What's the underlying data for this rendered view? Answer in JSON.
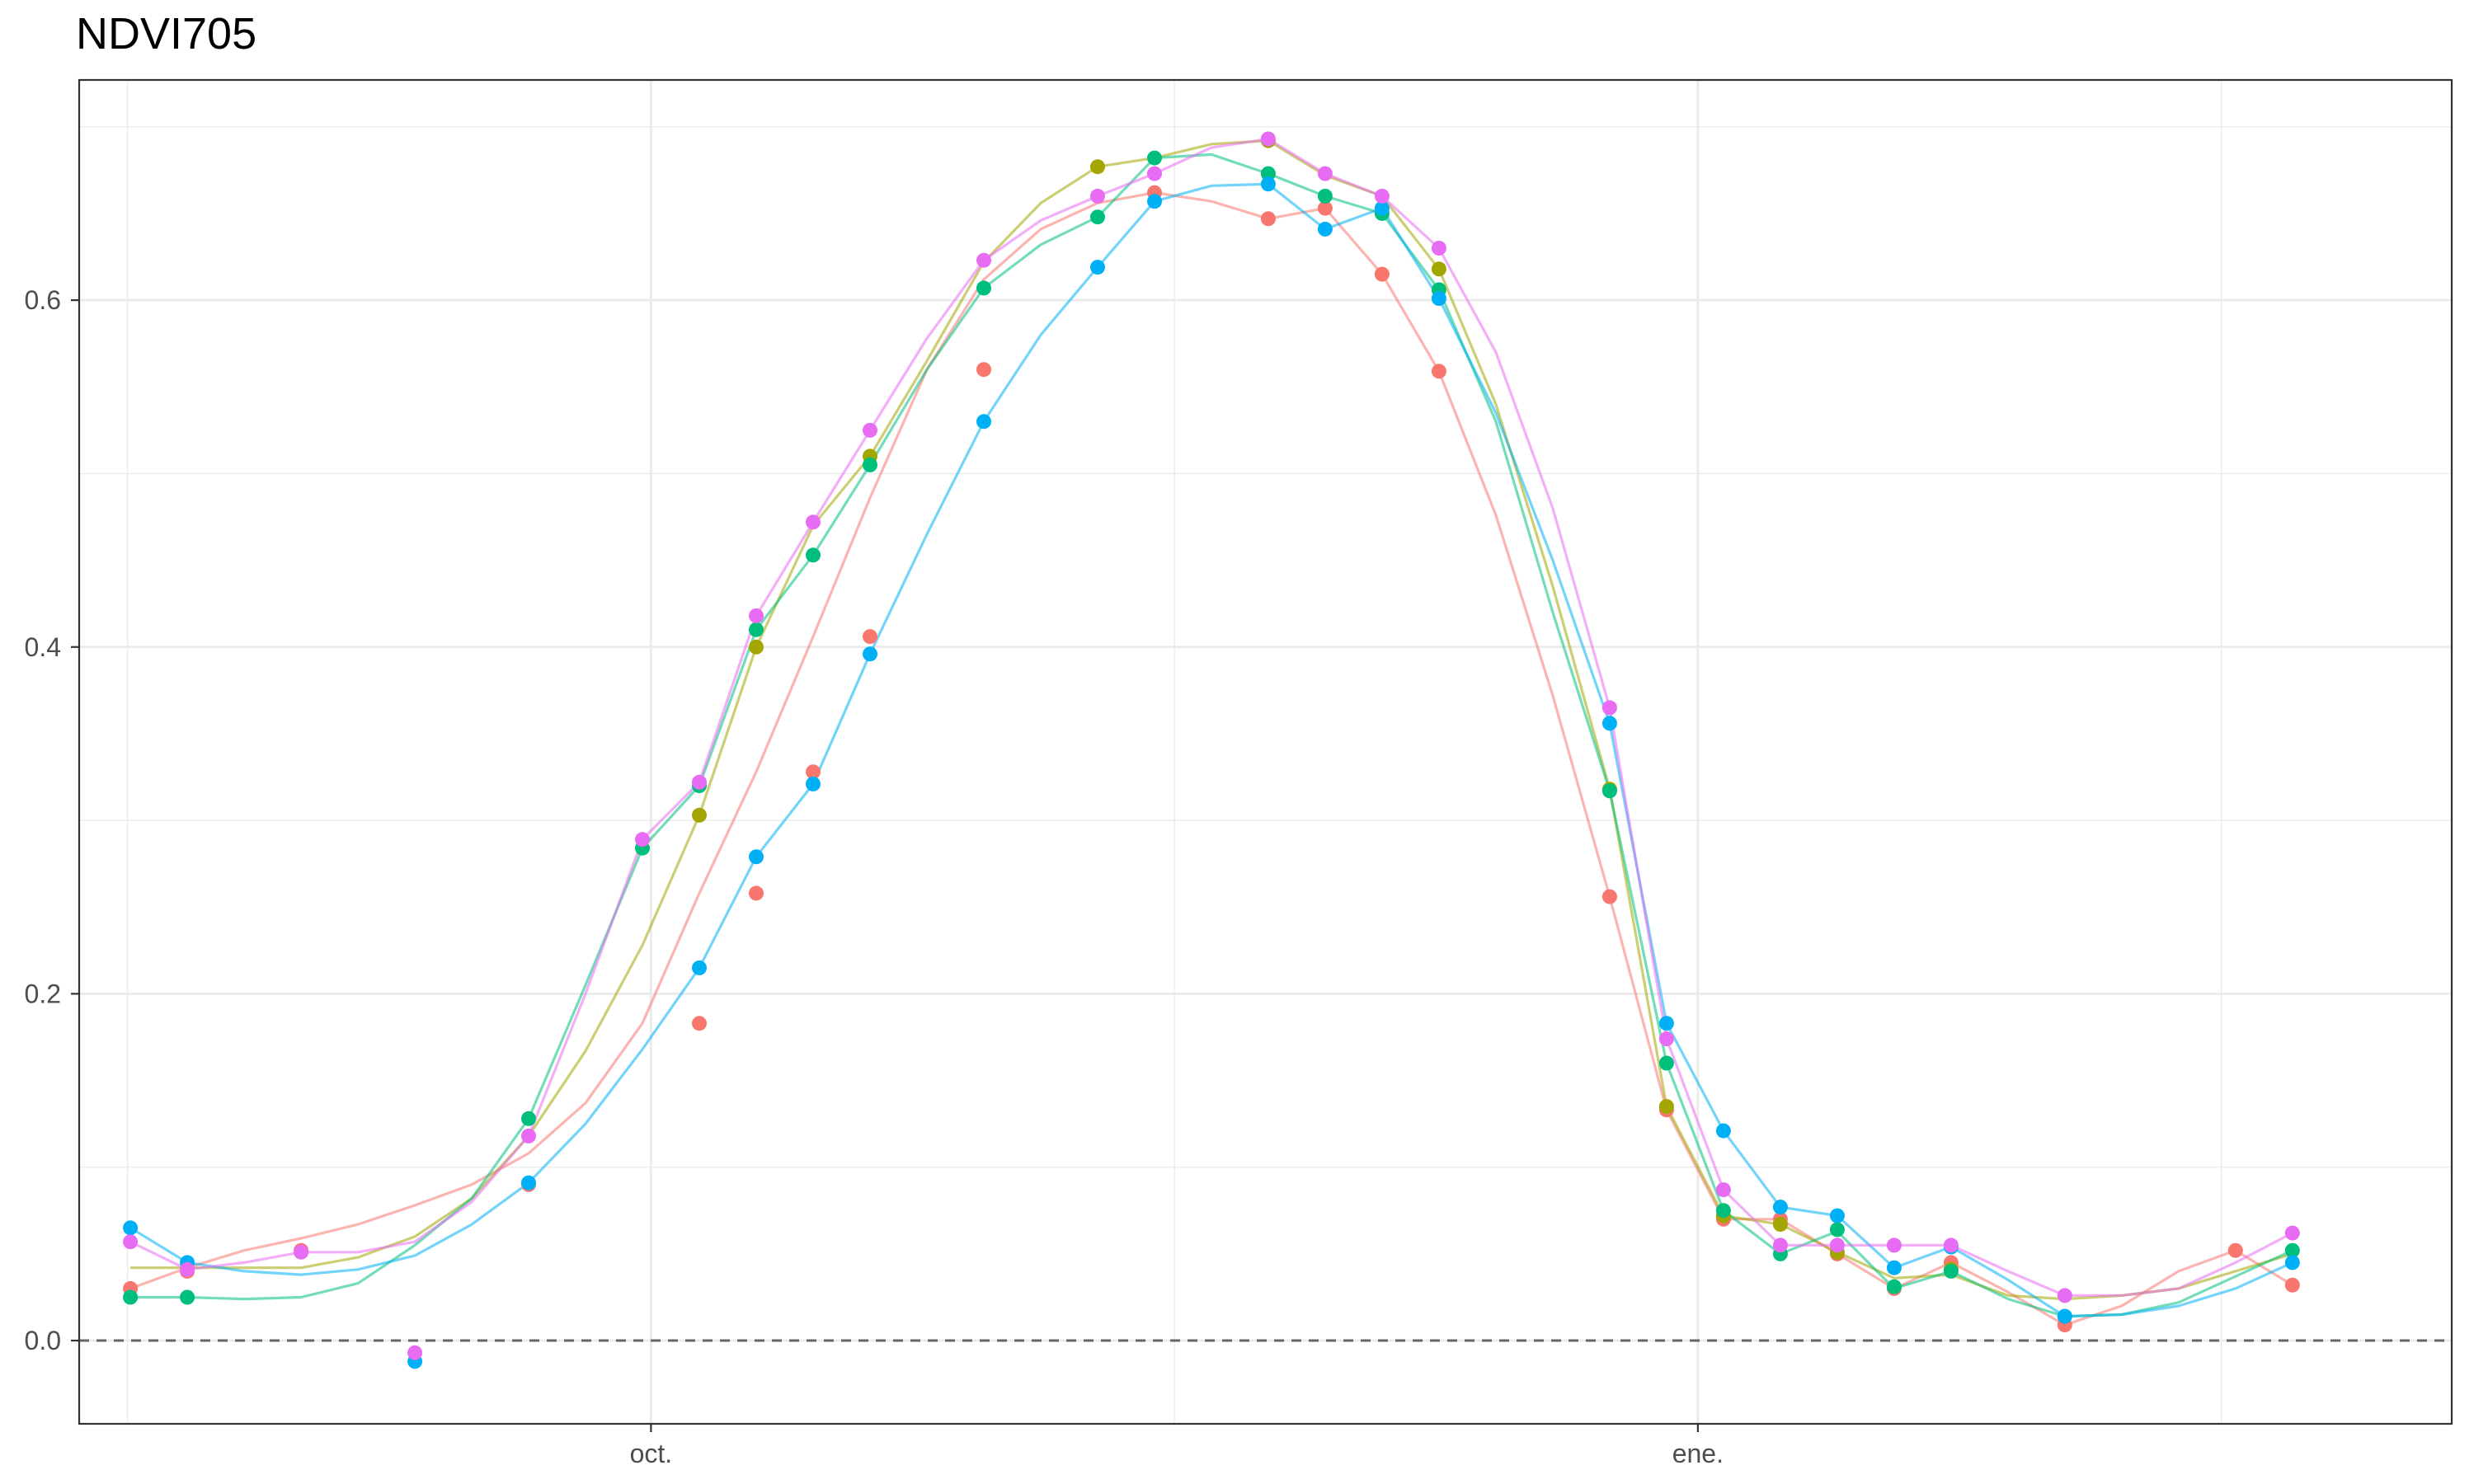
{
  "chart_data": {
    "type": "line",
    "title": "NDVI705",
    "xlabel": "",
    "ylabel": "",
    "x_ticks": [
      "oct.",
      "ene."
    ],
    "x_tick_positions": [
      9.15,
      27.55
    ],
    "xlim": [
      -0.9,
      40.8
    ],
    "y_ticks": [
      0.0,
      0.2,
      0.4,
      0.6
    ],
    "y_tick_labels": [
      "0.0",
      "0.2",
      "0.4",
      "0.6"
    ],
    "ylim": [
      -0.048,
      0.727
    ],
    "reference_line": {
      "y": 0.0,
      "style": "dashed",
      "color": "#666666"
    },
    "grid": true,
    "x_index": [
      0,
      1,
      2,
      3,
      4,
      5,
      6,
      7,
      8,
      9,
      10,
      11,
      12,
      13,
      14,
      15,
      16,
      17,
      18,
      19,
      20,
      21,
      22,
      23,
      24,
      25,
      26,
      27,
      28,
      29,
      30,
      31,
      32,
      33,
      34,
      35,
      36,
      37,
      38
    ],
    "series": [
      {
        "color": "#F8766D",
        "line": [
          0.03,
          0.042,
          0.052,
          0.059,
          0.067,
          0.078,
          0.09,
          0.108,
          0.137,
          0.183,
          0.258,
          0.328,
          0.406,
          0.486,
          0.56,
          0.612,
          0.641,
          0.656,
          0.662,
          0.657,
          0.647,
          0.653,
          0.615,
          0.559,
          0.476,
          0.372,
          0.256,
          0.133,
          0.07,
          0.07,
          0.05,
          0.03,
          0.045,
          0.028,
          0.009,
          0.02,
          0.04,
          0.052,
          0.032
        ],
        "points": [
          [
            0,
            0.03
          ],
          [
            1,
            0.04
          ],
          [
            3,
            0.052
          ],
          [
            7,
            0.09
          ],
          [
            10,
            0.183
          ],
          [
            11,
            0.258
          ],
          [
            12,
            0.328
          ],
          [
            13,
            0.406
          ],
          [
            15,
            0.56
          ],
          [
            18,
            0.662
          ],
          [
            20,
            0.647
          ],
          [
            21,
            0.653
          ],
          [
            22,
            0.615
          ],
          [
            23,
            0.559
          ],
          [
            26,
            0.256
          ],
          [
            27,
            0.133
          ],
          [
            28,
            0.07
          ],
          [
            29,
            0.07
          ],
          [
            30,
            0.05
          ],
          [
            31,
            0.03
          ],
          [
            32,
            0.045
          ],
          [
            34,
            0.009
          ],
          [
            37,
            0.052
          ],
          [
            38,
            0.032
          ]
        ]
      },
      {
        "color": "#A3A500",
        "line": [
          0.042,
          0.042,
          0.042,
          0.042,
          0.048,
          0.06,
          0.082,
          0.118,
          0.167,
          0.228,
          0.303,
          0.4,
          0.47,
          0.51,
          0.565,
          0.622,
          0.656,
          0.677,
          0.682,
          0.69,
          0.692,
          0.672,
          0.66,
          0.618,
          0.54,
          0.435,
          0.318,
          0.135,
          0.072,
          0.067,
          0.051,
          0.036,
          0.038,
          0.026,
          0.024,
          0.026,
          0.03,
          0.04,
          0.05
        ],
        "points": [
          [
            10,
            0.303
          ],
          [
            11,
            0.4
          ],
          [
            13,
            0.51
          ],
          [
            17,
            0.677
          ],
          [
            20,
            0.692
          ],
          [
            23,
            0.618
          ],
          [
            26,
            0.318
          ],
          [
            27,
            0.135
          ],
          [
            28,
            0.072
          ],
          [
            29,
            0.067
          ],
          [
            30,
            0.051
          ],
          [
            32,
            0.041
          ]
        ]
      },
      {
        "color": "#00BF7D",
        "line": [
          0.025,
          0.025,
          0.024,
          0.025,
          0.033,
          0.055,
          0.082,
          0.128,
          0.205,
          0.284,
          0.32,
          0.41,
          0.453,
          0.505,
          0.56,
          0.607,
          0.632,
          0.648,
          0.682,
          0.684,
          0.673,
          0.66,
          0.65,
          0.606,
          0.53,
          0.42,
          0.317,
          0.16,
          0.075,
          0.05,
          0.063,
          0.03,
          0.04,
          0.024,
          0.014,
          0.015,
          0.022,
          0.037,
          0.052
        ],
        "points": [
          [
            0,
            0.025
          ],
          [
            1,
            0.025
          ],
          [
            7,
            0.128
          ],
          [
            9,
            0.284
          ],
          [
            10,
            0.32
          ],
          [
            11,
            0.41
          ],
          [
            12,
            0.453
          ],
          [
            13,
            0.505
          ],
          [
            15,
            0.607
          ],
          [
            17,
            0.648
          ],
          [
            18,
            0.682
          ],
          [
            20,
            0.673
          ],
          [
            21,
            0.66
          ],
          [
            22,
            0.65
          ],
          [
            23,
            0.606
          ],
          [
            26,
            0.317
          ],
          [
            27,
            0.16
          ],
          [
            28,
            0.075
          ],
          [
            29,
            0.05
          ],
          [
            30,
            0.064
          ],
          [
            31,
            0.031
          ],
          [
            32,
            0.04
          ],
          [
            34,
            0.014
          ],
          [
            38,
            0.052
          ]
        ]
      },
      {
        "color": "#00B0F6",
        "line": [
          0.065,
          0.045,
          0.04,
          0.038,
          0.041,
          0.049,
          0.067,
          0.091,
          0.125,
          0.168,
          0.215,
          0.279,
          0.321,
          0.396,
          0.465,
          0.53,
          0.58,
          0.619,
          0.657,
          0.666,
          0.667,
          0.641,
          0.653,
          0.601,
          0.535,
          0.45,
          0.356,
          0.183,
          0.121,
          0.077,
          0.072,
          0.042,
          0.054,
          0.035,
          0.014,
          0.015,
          0.02,
          0.03,
          0.045
        ],
        "points": [
          [
            0,
            0.065
          ],
          [
            1,
            0.045
          ],
          [
            5,
            -0.012
          ],
          [
            7,
            0.091
          ],
          [
            10,
            0.215
          ],
          [
            11,
            0.279
          ],
          [
            12,
            0.321
          ],
          [
            13,
            0.396
          ],
          [
            15,
            0.53
          ],
          [
            17,
            0.619
          ],
          [
            18,
            0.657
          ],
          [
            20,
            0.667
          ],
          [
            21,
            0.641
          ],
          [
            22,
            0.653
          ],
          [
            23,
            0.601
          ],
          [
            26,
            0.356
          ],
          [
            27,
            0.183
          ],
          [
            28,
            0.121
          ],
          [
            29,
            0.077
          ],
          [
            30,
            0.072
          ],
          [
            31,
            0.042
          ],
          [
            32,
            0.054
          ],
          [
            34,
            0.014
          ],
          [
            38,
            0.045
          ]
        ]
      },
      {
        "color": "#E76BF3",
        "line": [
          0.057,
          0.041,
          0.045,
          0.051,
          0.051,
          0.057,
          0.08,
          0.118,
          0.2,
          0.289,
          0.322,
          0.418,
          0.472,
          0.525,
          0.578,
          0.623,
          0.646,
          0.66,
          0.673,
          0.688,
          0.693,
          0.673,
          0.66,
          0.63,
          0.57,
          0.48,
          0.365,
          0.174,
          0.087,
          0.055,
          0.055,
          0.055,
          0.055,
          0.04,
          0.026,
          0.026,
          0.03,
          0.045,
          0.062
        ],
        "points": [
          [
            0,
            0.057
          ],
          [
            1,
            0.041
          ],
          [
            3,
            0.051
          ],
          [
            5,
            -0.007
          ],
          [
            7,
            0.118
          ],
          [
            9,
            0.289
          ],
          [
            10,
            0.322
          ],
          [
            11,
            0.418
          ],
          [
            12,
            0.472
          ],
          [
            13,
            0.525
          ],
          [
            15,
            0.623
          ],
          [
            17,
            0.66
          ],
          [
            18,
            0.673
          ],
          [
            20,
            0.693
          ],
          [
            21,
            0.673
          ],
          [
            22,
            0.66
          ],
          [
            23,
            0.63
          ],
          [
            26,
            0.365
          ],
          [
            27,
            0.174
          ],
          [
            28,
            0.087
          ],
          [
            29,
            0.055
          ],
          [
            30,
            0.055
          ],
          [
            31,
            0.055
          ],
          [
            32,
            0.055
          ],
          [
            34,
            0.026
          ],
          [
            38,
            0.062
          ]
        ]
      }
    ]
  }
}
